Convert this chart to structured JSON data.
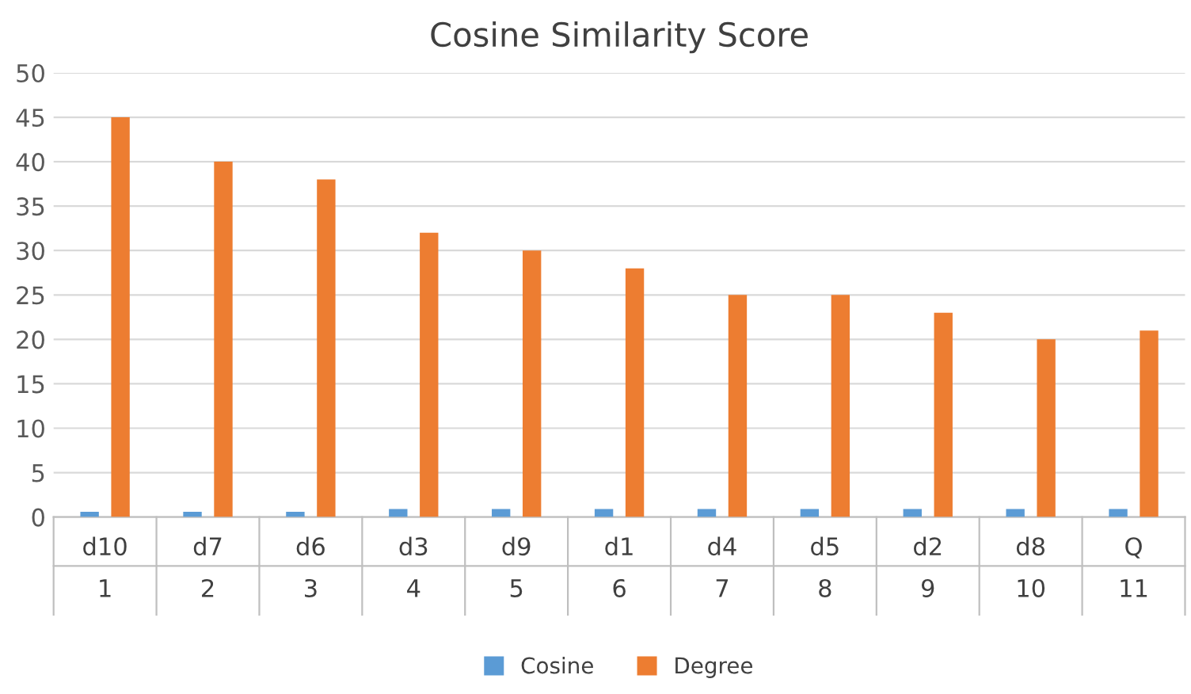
{
  "chart_data": {
    "type": "bar",
    "title": "Cosine Similarity Score",
    "categories": [
      "d10",
      "d7",
      "d6",
      "d3",
      "d9",
      "d1",
      "d4",
      "d5",
      "d2",
      "d8",
      "Q"
    ],
    "annotations": [
      "1",
      "2",
      "3",
      "4",
      "5",
      "6",
      "7",
      "8",
      "9",
      "10",
      "11"
    ],
    "series": [
      {
        "name": "Cosine",
        "color": "#5b9bd5",
        "values": [
          0.6,
          0.6,
          0.6,
          0.9,
          0.9,
          0.9,
          0.9,
          0.9,
          0.9,
          0.9,
          0.9
        ]
      },
      {
        "name": "Degree",
        "color": "#ed7d31",
        "values": [
          45,
          40,
          38,
          32,
          30,
          28,
          25,
          25,
          23,
          20,
          21
        ]
      }
    ],
    "ylim": [
      0,
      50
    ],
    "yticks": [
      0,
      5,
      10,
      15,
      20,
      25,
      30,
      35,
      40,
      45,
      50
    ],
    "grid": "y",
    "legend": "bottom"
  }
}
